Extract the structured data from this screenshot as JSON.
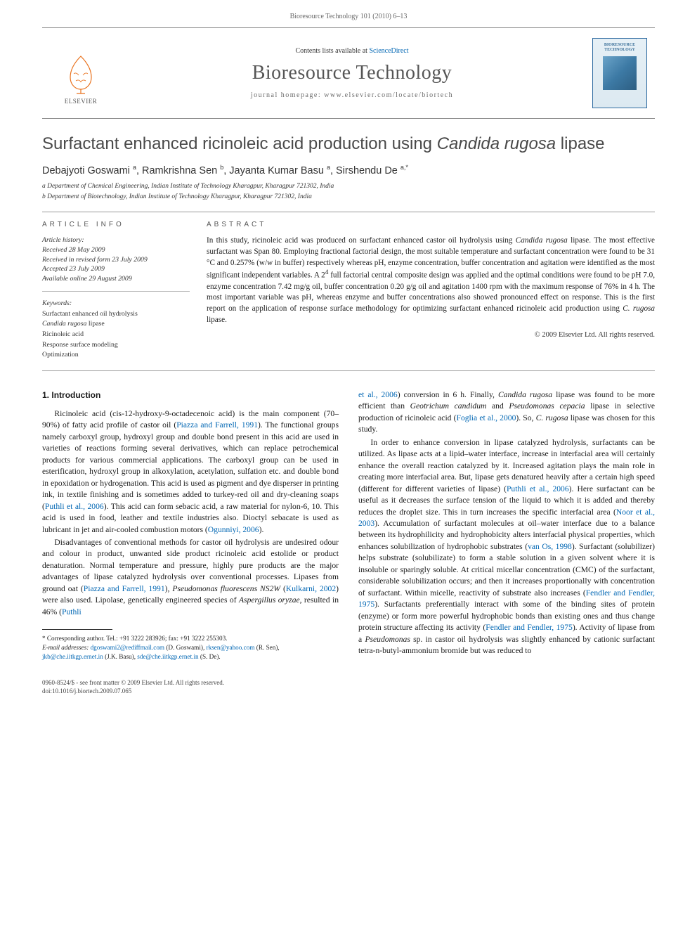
{
  "header": {
    "running_head": "Bioresource Technology 101 (2010) 6–13",
    "contents_line_a": "Contents lists available at ",
    "contents_link": "ScienceDirect",
    "journal_name": "Bioresource Technology",
    "homepage_line": "journal homepage: www.elsevier.com/locate/biortech",
    "publisher": "ELSEVIER",
    "cover_title": "BIORESOURCE\nTECHNOLOGY"
  },
  "article": {
    "title_a": "Surfactant enhanced ricinoleic acid production using ",
    "title_em": "Candida rugosa",
    "title_b": " lipase",
    "authors_html": "Debajyoti Goswami <sup>a</sup>, Ramkrishna Sen <sup>b</sup>, Jayanta Kumar Basu <sup>a</sup>, Sirshendu De <sup>a,*</sup>",
    "affiliations": [
      "a Department of Chemical Engineering, Indian Institute of Technology Kharagpur, Kharagpur 721302, India",
      "b Department of Biotechnology, Indian Institute of Technology Kharagpur, Kharagpur 721302, India"
    ]
  },
  "info": {
    "label": "article info",
    "history_head": "Article history:",
    "history": [
      "Received 28 May 2009",
      "Received in revised form 23 July 2009",
      "Accepted 23 July 2009",
      "Available online 29 August 2009"
    ],
    "keywords_head": "Keywords:",
    "keywords": [
      "Surfactant enhanced oil hydrolysis",
      "<em>Candida rugosa</em> lipase",
      "Ricinoleic acid",
      "Response surface modeling",
      "Optimization"
    ]
  },
  "abstract": {
    "label": "abstract",
    "text": "In this study, ricinoleic acid was produced on surfactant enhanced castor oil hydrolysis using <em>Candida rugosa</em> lipase. The most effective surfactant was Span 80. Employing fractional factorial design, the most suitable temperature and surfactant concentration were found to be 31 °C and 0.257% (w/w in buffer) respectively whereas pH, enzyme concentration, buffer concentration and agitation were identified as the most significant independent variables. A 2<sup>4</sup> full factorial central composite design was applied and the optimal conditions were found to be pH 7.0, enzyme concentration 7.42 mg/g oil, buffer concentration 0.20 g/g oil and agitation 1400 rpm with the maximum response of 76% in 4 h. The most important variable was pH, whereas enzyme and buffer concentrations also showed pronounced effect on response. This is the first report on the application of response surface methodology for optimizing surfactant enhanced ricinoleic acid production using <em>C. rugosa</em> lipase.",
    "copyright": "© 2009 Elsevier Ltd. All rights reserved."
  },
  "body": {
    "section_num": "1.",
    "section_title": "Introduction",
    "paragraphs": [
      "Ricinoleic acid (cis-12-hydroxy-9-octadecenoic acid) is the main component (70–90%) of fatty acid profile of castor oil (<a class='ref-link'>Piazza and Farrell, 1991</a>). The functional groups namely carboxyl group, hydroxyl group and double bond present in this acid are used in varieties of reactions forming several derivatives, which can replace petrochemical products for various commercial applications. The carboxyl group can be used in esterification, hydroxyl group in alkoxylation, acetylation, sulfation etc. and double bond in epoxidation or hydrogenation. This acid is used as pigment and dye disperser in printing ink, in textile finishing and is sometimes added to turkey-red oil and dry-cleaning soaps (<a class='ref-link'>Puthli et al., 2006</a>). This acid can form sebacic acid, a raw material for nylon-6, 10. This acid is used in food, leather and textile industries also. Dioctyl sebacate is used as lubricant in jet and air-cooled combustion motors (<a class='ref-link'>Ogunniyi, 2006</a>).",
      "Disadvantages of conventional methods for castor oil hydrolysis are undesired odour and colour in product, unwanted side product ricinoleic acid estolide or product denaturation. Normal temperature and pressure, highly pure products are the major advantages of lipase catalyzed hydrolysis over conventional processes. Lipases from ground oat (<a class='ref-link'>Piazza and Farrell, 1991</a>), <em>Pseudomonas fluorescens NS2W</em> (<a class='ref-link'>Kulkarni, 2002</a>) were also used. Lipolase, genetically engineered species of <em>Aspergillus oryzae</em>, resulted in 46% (<a class='ref-link'>Puthli</a>",
      "<a class='ref-link'>et al., 2006</a>) conversion in 6 h. Finally, <em>Candida rugosa</em> lipase was found to be more efficient than <em>Geotrichum candidum</em> and <em>Pseudomonas cepacia</em> lipase in selective production of ricinoleic acid (<a class='ref-link'>Foglia et al., 2000</a>). So, <em>C. rugosa</em> lipase was chosen for this study.",
      "In order to enhance conversion in lipase catalyzed hydrolysis, surfactants can be utilized. As lipase acts at a lipid–water interface, increase in interfacial area will certainly enhance the overall reaction catalyzed by it. Increased agitation plays the main role in creating more interfacial area. But, lipase gets denatured heavily after a certain high speed (different for different varieties of lipase) (<a class='ref-link'>Puthli et al., 2006</a>). Here surfactant can be useful as it decreases the surface tension of the liquid to which it is added and thereby reduces the droplet size. This in turn increases the specific interfacial area (<a class='ref-link'>Noor et al., 2003</a>). Accumulation of surfactant molecules at oil–water interface due to a balance between its hydrophilicity and hydrophobicity alters interfacial physical properties, which enhances solubilization of hydrophobic substrates (<a class='ref-link'>van Os, 1998</a>). Surfactant (solubilizer) helps substrate (solubilizate) to form a stable solution in a given solvent where it is insoluble or sparingly soluble. At critical micellar concentration (CMC) of the surfactant, considerable solubilization occurs; and then it increases proportionally with concentration of surfactant. Within micelle, reactivity of substrate also increases (<a class='ref-link'>Fendler and Fendler, 1975</a>). Surfactants preferentially interact with some of the binding sites of protein (enzyme) or form more powerful hydrophobic bonds than existing ones and thus change protein structure affecting its activity (<a class='ref-link'>Fendler and Fendler, 1975</a>). Activity of lipase from a <em>Pseudomonas</em> sp. in castor oil hydrolysis was slightly enhanced by cationic surfactant tetra-n-butyl-ammonium bromide but was reduced to"
    ]
  },
  "footnotes": {
    "corresponding": "* Corresponding author. Tel.: +91 3222 283926; fax: +91 3222 255303.",
    "emails_label": "E-mail addresses:",
    "emails": " <a>dgoswami2@rediffmail.com</a> (D. Goswami), <a>rksen@yahoo.com</a> (R. Sen), <a>jkb@che.iitkgp.ernet.in</a> (J.K. Basu), <a>sde@che.iitkgp.ernet.in</a> (S. De)."
  },
  "footer": {
    "line1": "0960-8524/$ - see front matter © 2009 Elsevier Ltd. All rights reserved.",
    "line2": "doi:10.1016/j.biortech.2009.07.065"
  },
  "colors": {
    "link": "#0066b3",
    "text": "#1a1a1a",
    "muted": "#666666",
    "rule": "#999999",
    "elsevier": "#e9711c"
  }
}
